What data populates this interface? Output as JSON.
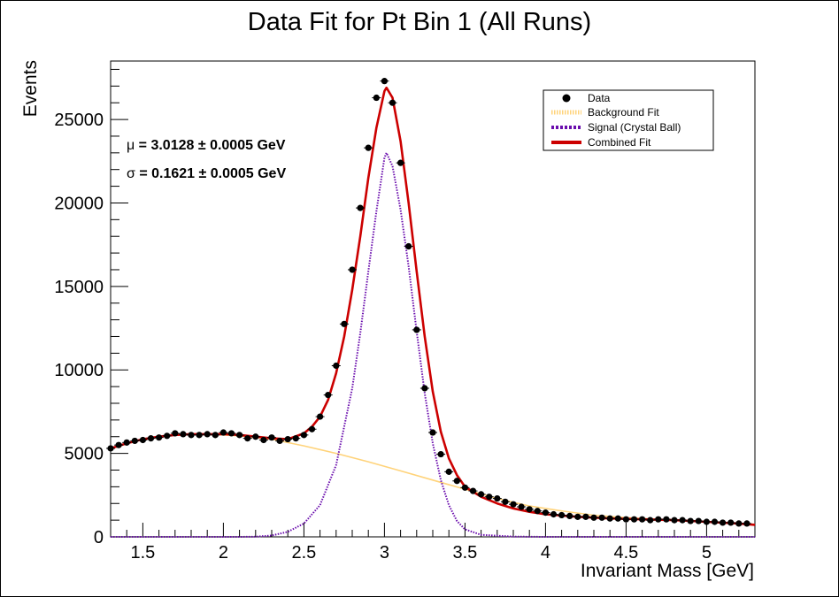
{
  "chart_data": {
    "type": "scatter",
    "title": "Data Fit for Pt Bin 1 (All Runs)",
    "xlabel": "Invariant Mass [GeV]",
    "ylabel": "Events",
    "xlim": [
      1.3,
      5.3
    ],
    "ylim": [
      0,
      28500
    ],
    "x_ticks": [
      1.5,
      2,
      2.5,
      3,
      3.5,
      4,
      4.5,
      5
    ],
    "x_tick_labels": [
      "1.5",
      "2",
      "2.5",
      "3",
      "3.5",
      "4",
      "4.5",
      "5"
    ],
    "y_ticks": [
      0,
      5000,
      10000,
      15000,
      20000,
      25000
    ],
    "y_tick_labels": [
      "0",
      "5000",
      "10000",
      "15000",
      "20000",
      "25000"
    ],
    "legend_position": "top-right",
    "legend": [
      {
        "label": "Data",
        "style": "marker",
        "color": "#000000"
      },
      {
        "label": "Background Fit",
        "style": "dotted",
        "color": "#ffd37a"
      },
      {
        "label": "Signal (Crystal Ball)",
        "style": "dotted",
        "color": "#6a0dad"
      },
      {
        "label": "Combined Fit",
        "style": "solid",
        "color": "#cc0000"
      }
    ],
    "annotations": [
      {
        "symbol": "μ",
        "text": " = 3.0128 ± 0.0005 GeV"
      },
      {
        "symbol": "σ",
        "text": " = 0.1621 ± 0.0005 GeV"
      }
    ],
    "series": [
      {
        "name": "Data",
        "style": "points",
        "color": "#000000",
        "x": [
          1.3,
          1.35,
          1.4,
          1.45,
          1.5,
          1.55,
          1.6,
          1.65,
          1.7,
          1.75,
          1.8,
          1.85,
          1.9,
          1.95,
          2.0,
          2.05,
          2.1,
          2.15,
          2.2,
          2.25,
          2.3,
          2.35,
          2.4,
          2.45,
          2.5,
          2.55,
          2.6,
          2.65,
          2.7,
          2.75,
          2.8,
          2.85,
          2.9,
          2.95,
          3.0,
          3.05,
          3.1,
          3.15,
          3.2,
          3.25,
          3.3,
          3.35,
          3.4,
          3.45,
          3.5,
          3.55,
          3.6,
          3.65,
          3.7,
          3.75,
          3.8,
          3.85,
          3.9,
          3.95,
          4.0,
          4.05,
          4.1,
          4.15,
          4.2,
          4.25,
          4.3,
          4.35,
          4.4,
          4.45,
          4.5,
          4.55,
          4.6,
          4.65,
          4.7,
          4.75,
          4.8,
          4.85,
          4.9,
          4.95,
          5.0,
          5.05,
          5.1,
          5.15,
          5.2,
          5.25
        ],
        "y": [
          5300,
          5500,
          5650,
          5750,
          5800,
          5900,
          5950,
          6050,
          6200,
          6150,
          6100,
          6100,
          6150,
          6100,
          6250,
          6200,
          6100,
          5900,
          6000,
          5800,
          5950,
          5750,
          5850,
          5900,
          6100,
          6450,
          7200,
          8500,
          10250,
          12750,
          16000,
          19700,
          23300,
          26300,
          27300,
          26000,
          22400,
          17400,
          12400,
          8900,
          6250,
          4950,
          3900,
          3350,
          2950,
          2750,
          2550,
          2400,
          2300,
          2100,
          1950,
          1800,
          1650,
          1550,
          1450,
          1350,
          1300,
          1250,
          1200,
          1200,
          1150,
          1150,
          1100,
          1100,
          1050,
          1050,
          1050,
          1000,
          1050,
          1050,
          1000,
          1000,
          950,
          950,
          900,
          900,
          850,
          850,
          800,
          800
        ],
        "yerr": [
          70,
          70,
          70,
          70,
          70,
          70,
          70,
          70,
          70,
          70,
          70,
          70,
          70,
          70,
          70,
          70,
          70,
          70,
          70,
          70,
          70,
          70,
          70,
          70,
          70,
          70,
          80,
          90,
          100,
          110,
          125,
          140,
          150,
          160,
          165,
          160,
          150,
          130,
          110,
          95,
          80,
          70,
          60,
          55,
          55,
          50,
          50,
          50,
          50,
          45,
          45,
          45,
          40,
          40,
          40,
          35,
          35,
          35,
          35,
          35,
          35,
          35,
          35,
          35,
          30,
          30,
          30,
          30,
          30,
          30,
          30,
          30,
          30,
          30,
          30,
          30,
          30,
          30,
          30,
          30
        ]
      },
      {
        "name": "Background Fit",
        "style": "line",
        "color": "#ffd37a",
        "x": [
          1.3,
          1.5,
          1.7,
          1.9,
          2.1,
          2.3,
          2.5,
          2.7,
          2.9,
          3.1,
          3.3,
          3.5,
          3.7,
          3.9,
          4.1,
          4.3,
          4.5,
          4.7,
          4.9,
          5.1,
          5.3
        ],
        "y": [
          5300,
          5850,
          6100,
          6150,
          6050,
          5850,
          5450,
          5000,
          4500,
          3950,
          3400,
          2850,
          2300,
          1850,
          1550,
          1300,
          1150,
          1050,
          950,
          850,
          750
        ]
      },
      {
        "name": "Signal (Crystal Ball)",
        "style": "line",
        "color": "#6a0dad",
        "x": [
          1.3,
          1.5,
          1.7,
          1.9,
          2.1,
          2.2,
          2.3,
          2.4,
          2.5,
          2.6,
          2.7,
          2.8,
          2.85,
          2.9,
          2.95,
          3.0,
          3.0128,
          3.05,
          3.1,
          3.15,
          3.2,
          3.25,
          3.3,
          3.35,
          3.4,
          3.45,
          3.5,
          3.6,
          3.8,
          4.0,
          4.5,
          5.0,
          5.3
        ],
        "y": [
          0,
          0,
          0,
          0,
          0,
          10,
          80,
          300,
          800,
          1900,
          4300,
          8900,
          12200,
          15900,
          19500,
          22700,
          23000,
          22200,
          19600,
          16200,
          12300,
          8600,
          5600,
          3400,
          1900,
          950,
          450,
          120,
          15,
          0,
          0,
          0,
          0
        ]
      },
      {
        "name": "Combined Fit",
        "style": "line",
        "color": "#cc0000",
        "x": [
          1.3,
          1.4,
          1.5,
          1.6,
          1.7,
          1.8,
          1.9,
          2.0,
          2.1,
          2.2,
          2.3,
          2.4,
          2.5,
          2.55,
          2.6,
          2.65,
          2.7,
          2.75,
          2.8,
          2.85,
          2.9,
          2.95,
          3.0,
          3.0128,
          3.05,
          3.1,
          3.15,
          3.2,
          3.25,
          3.3,
          3.35,
          3.4,
          3.45,
          3.5,
          3.6,
          3.7,
          3.8,
          3.9,
          4.0,
          4.2,
          4.4,
          4.6,
          4.8,
          5.0,
          5.2,
          5.3
        ],
        "y": [
          5300,
          5600,
          5850,
          6000,
          6100,
          6150,
          6150,
          6150,
          6100,
          6000,
          5900,
          5850,
          6200,
          6600,
          7200,
          8200,
          9800,
          12000,
          14800,
          18000,
          21500,
          24500,
          26700,
          26900,
          26300,
          23700,
          20000,
          15900,
          12000,
          8700,
          6300,
          4700,
          3700,
          3000,
          2400,
          2000,
          1700,
          1500,
          1350,
          1200,
          1100,
          1050,
          1000,
          900,
          800,
          720
        ]
      }
    ]
  }
}
